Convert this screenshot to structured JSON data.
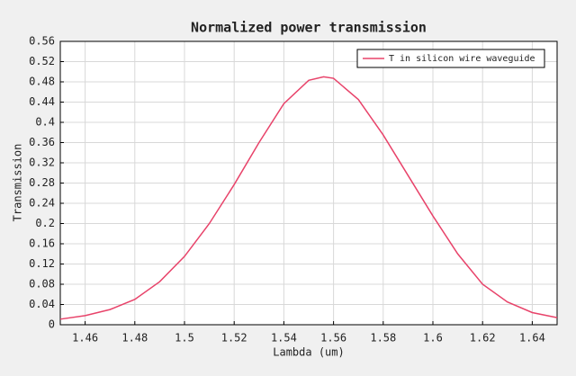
{
  "chart_data": {
    "type": "line",
    "title": "Normalized power transmission",
    "x_label": "Lambda (um)",
    "y_label": "Transmission",
    "x": [
      1.45,
      1.46,
      1.47,
      1.48,
      1.49,
      1.5,
      1.51,
      1.52,
      1.53,
      1.54,
      1.55,
      1.556,
      1.56,
      1.57,
      1.58,
      1.59,
      1.6,
      1.61,
      1.62,
      1.63,
      1.64,
      1.65
    ],
    "series": [
      {
        "name": "T in silicon wire waveguide",
        "color": "#e8436a",
        "values": [
          0.011,
          0.018,
          0.03,
          0.05,
          0.085,
          0.135,
          0.2,
          0.277,
          0.36,
          0.437,
          0.483,
          0.49,
          0.487,
          0.445,
          0.375,
          0.295,
          0.215,
          0.14,
          0.08,
          0.045,
          0.024,
          0.014
        ]
      }
    ],
    "xlim": [
      1.45,
      1.65
    ],
    "xticks": [
      1.46,
      1.48,
      1.5,
      1.52,
      1.54,
      1.56,
      1.58,
      1.6,
      1.62,
      1.64
    ],
    "ylim": [
      0,
      0.56
    ],
    "yticks": [
      0,
      0.04,
      0.08,
      0.12,
      0.16,
      0.2,
      0.24,
      0.28,
      0.32,
      0.36,
      0.4,
      0.44,
      0.48,
      0.52,
      0.56
    ],
    "grid": true,
    "legend": "top-right"
  }
}
